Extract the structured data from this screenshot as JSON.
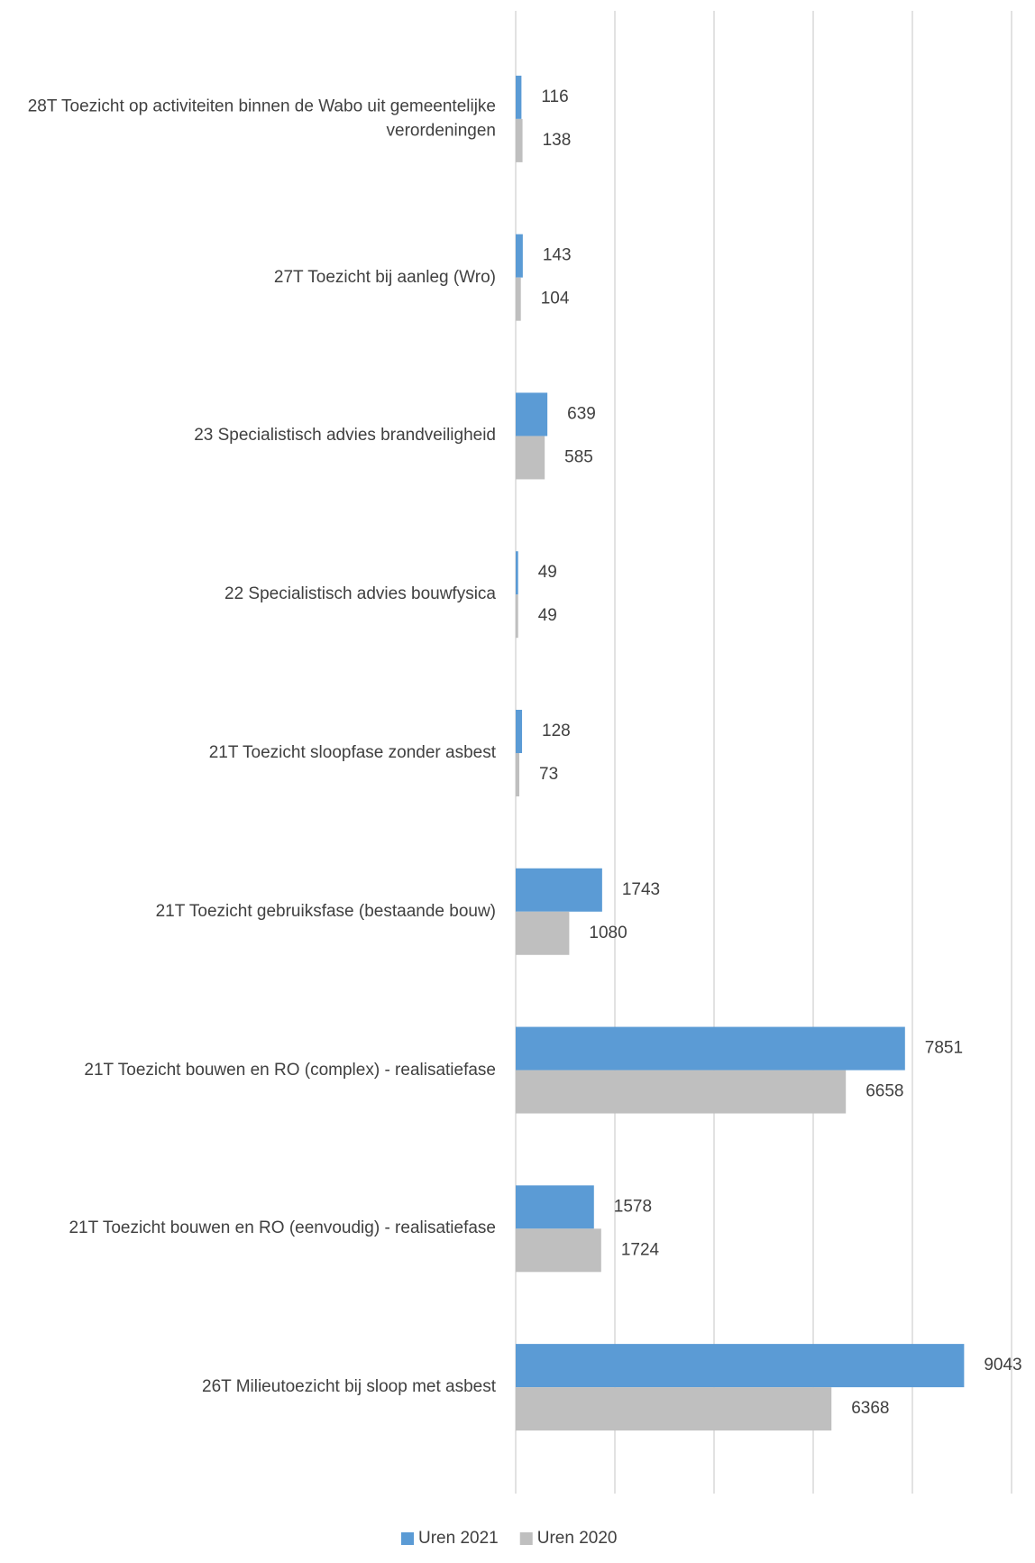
{
  "chart_data": {
    "type": "barh",
    "categories": [
      "28T Toezicht op activiteiten binnen de Wabo uit gemeentelijke verordeningen",
      "27T Toezicht bij aanleg (Wro)",
      "23 Specialistisch advies brandveiligheid",
      "22 Specialistisch advies bouwfysica",
      "21T Toezicht sloopfase zonder asbest",
      "21T Toezicht gebruiksfase (bestaande bouw)",
      "21T Toezicht bouwen en RO (complex) - realisatiefase",
      "21T Toezicht bouwen en RO (eenvoudig) - realisatiefase",
      "26T Milieutoezicht bij sloop met asbest"
    ],
    "series": [
      {
        "name": "Uren 2021",
        "color": "#5b9bd5",
        "values": [
          116,
          143,
          639,
          49,
          128,
          1743,
          7851,
          1578,
          9043
        ]
      },
      {
        "name": "Uren 2020",
        "color": "#bfbfbf",
        "values": [
          138,
          104,
          585,
          49,
          73,
          1080,
          6658,
          1724,
          6368
        ]
      }
    ],
    "xlim": [
      0,
      10000
    ],
    "xticks": [
      0,
      2000,
      4000,
      6000,
      8000,
      10000
    ],
    "grid": true,
    "legend": "bottom"
  }
}
